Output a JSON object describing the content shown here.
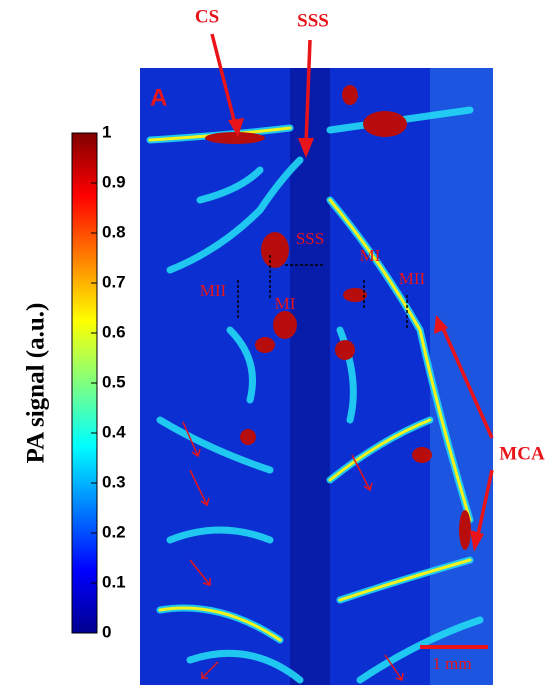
{
  "figure": {
    "panel_label": "A",
    "colorbar": {
      "label": "PA signal (a.u.)",
      "range": [
        0,
        1
      ],
      "ticks": [
        0,
        0.1,
        0.2,
        0.3,
        0.4,
        0.5,
        0.6,
        0.7,
        0.8,
        0.9,
        1
      ]
    },
    "annotations": [
      "CS",
      "SSS",
      "MCA"
    ],
    "region_labels": [
      "SSS",
      "MI",
      "MII",
      "MII",
      "MI"
    ],
    "scale_bar": "1 mm"
  }
}
